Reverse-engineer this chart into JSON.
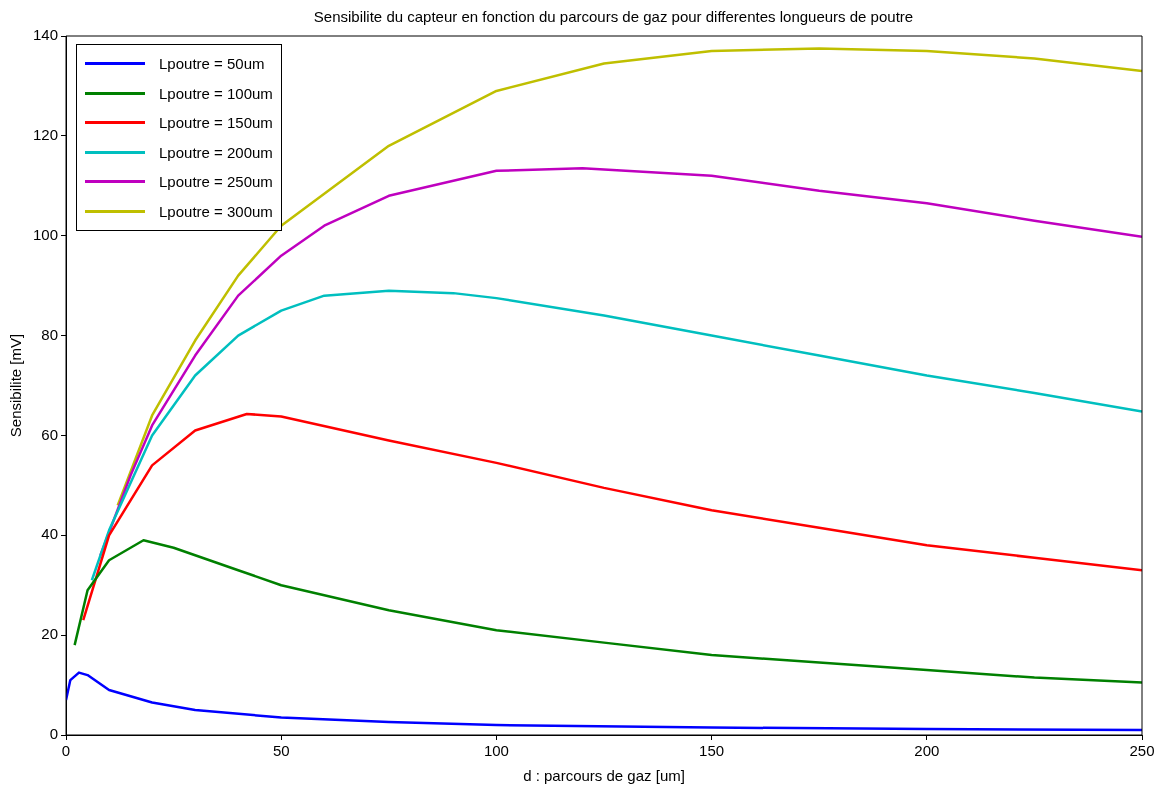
{
  "chart_data": {
    "type": "line",
    "title": "Sensibilite du capteur en fonction du parcours de gaz pour differentes longueurs de poutre",
    "xlabel": "d : parcours de gaz [um]",
    "ylabel": "Sensibilite [mV]",
    "xlim": [
      0,
      250
    ],
    "xticks": [
      0,
      50,
      100,
      150,
      200,
      250
    ],
    "ylim": [
      0,
      140
    ],
    "yticks": [
      0,
      20,
      40,
      60,
      80,
      100,
      120,
      140
    ],
    "grid": false,
    "legend": "top left",
    "marker": "none",
    "line_style": "solid",
    "series": [
      {
        "name": "Lpoutre = 50um",
        "color": "#0000ff",
        "x": [
          0,
          1,
          3,
          5,
          10,
          20,
          30,
          50,
          75,
          100,
          150,
          200,
          250
        ],
        "values": [
          7,
          11,
          12.5,
          12,
          9,
          6.5,
          5,
          3.5,
          2.6,
          2,
          1.5,
          1.2,
          1
        ]
      },
      {
        "name": "Lpoutre = 100um",
        "color": "#008000",
        "x": [
          2,
          5,
          10,
          18,
          25,
          40,
          50,
          75,
          100,
          125,
          150,
          175,
          200,
          225,
          250
        ],
        "values": [
          18,
          29,
          35,
          39,
          37.5,
          33,
          30,
          25,
          21,
          18.5,
          16,
          14.5,
          13,
          11.5,
          10.5
        ]
      },
      {
        "name": "Lpoutre = 150um",
        "color": "#ff0000",
        "x": [
          4,
          10,
          20,
          30,
          42,
          50,
          75,
          100,
          125,
          150,
          175,
          200,
          225,
          250
        ],
        "values": [
          23,
          40,
          54,
          61,
          64.3,
          63.8,
          59,
          54.5,
          49.5,
          45,
          41.5,
          38,
          35.5,
          33
        ]
      },
      {
        "name": "Lpoutre = 200um",
        "color": "#00bfbf",
        "x": [
          6,
          10,
          20,
          30,
          40,
          50,
          60,
          75,
          90,
          100,
          125,
          150,
          175,
          200,
          225,
          250
        ],
        "values": [
          31,
          41,
          60,
          72,
          80,
          85,
          88,
          89,
          88.5,
          87.5,
          84,
          80,
          76,
          72,
          68.5,
          64.8
        ]
      },
      {
        "name": "Lpoutre = 250um",
        "color": "#bf00bf",
        "x": [
          8,
          15,
          20,
          30,
          40,
          50,
          60,
          75,
          100,
          120,
          150,
          175,
          200,
          225,
          250
        ],
        "values": [
          36,
          52,
          62,
          76,
          88,
          96,
          102,
          108,
          113,
          113.5,
          112,
          109,
          106.5,
          103,
          99.8
        ]
      },
      {
        "name": "Lpoutre = 300um",
        "color": "#bfbf00",
        "x": [
          12,
          20,
          30,
          40,
          50,
          75,
          100,
          125,
          150,
          175,
          200,
          225,
          250
        ],
        "values": [
          46,
          64,
          79,
          92,
          102,
          118,
          129,
          134.5,
          137,
          137.5,
          137,
          135.5,
          133
        ]
      }
    ]
  }
}
